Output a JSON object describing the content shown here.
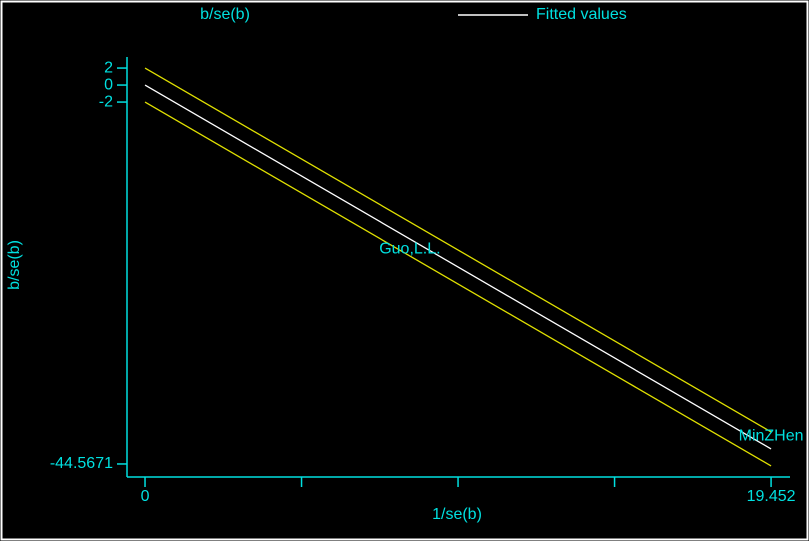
{
  "chart_data": {
    "type": "scatter",
    "xlabel": "1/se(b)",
    "ylabel": "b/se(b)",
    "xlim": [
      -0.56,
      20.04
    ],
    "ylim": [
      -46.1,
      3.3
    ],
    "xticks": [
      0,
      19.452
    ],
    "xminor_ticks": [
      4.863,
      9.726,
      14.589
    ],
    "yticks": [
      2,
      0,
      -2,
      -44.5671
    ],
    "series": [
      {
        "name": "b/se(b)",
        "color": "#00e0e0",
        "point_labels": [
          "Guo,L.L.",
          "MinZHen"
        ],
        "x": [
          8.23,
          19.452
        ],
        "values": [
          -19.3,
          -41.3
        ]
      },
      {
        "name": "Fitted values",
        "color": "#ffffff",
        "x": [
          0,
          19.452
        ],
        "values": [
          0,
          -42.8
        ]
      }
    ],
    "bands": {
      "color": "#e0e000",
      "x": [
        0,
        19.452
      ],
      "upper": [
        2,
        -40.8
      ],
      "lower": [
        -2,
        -44.8
      ]
    },
    "text_color": "#00e0e0"
  }
}
